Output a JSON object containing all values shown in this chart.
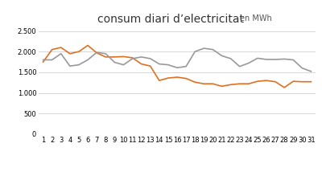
{
  "days": [
    1,
    2,
    3,
    4,
    5,
    6,
    7,
    8,
    9,
    10,
    11,
    12,
    13,
    14,
    15,
    16,
    17,
    18,
    19,
    20,
    21,
    22,
    23,
    24,
    25,
    26,
    27,
    28,
    29,
    30,
    31
  ],
  "series_2020": [
    1750,
    2050,
    2100,
    1950,
    2000,
    2150,
    1970,
    1870,
    1870,
    1880,
    1850,
    1700,
    1650,
    1300,
    1360,
    1380,
    1350,
    1260,
    1220,
    1220,
    1160,
    1200,
    1220,
    1220,
    1280,
    1300,
    1270,
    1130,
    1280,
    1270,
    1270
  ],
  "series_2019": [
    1800,
    1800,
    1950,
    1650,
    1680,
    1800,
    1980,
    1950,
    1740,
    1680,
    1830,
    1870,
    1830,
    1700,
    1680,
    1610,
    1640,
    2000,
    2080,
    2050,
    1900,
    1830,
    1640,
    1720,
    1840,
    1810,
    1810,
    1820,
    1800,
    1600,
    1520
  ],
  "color_2020": "#E07020",
  "color_2019": "#999999",
  "title_main": "consum diari d’electricitat",
  "title_sub": "en MWh",
  "ylim": [
    0,
    2500
  ],
  "yticks": [
    0,
    500,
    1000,
    1500,
    2000,
    2500
  ],
  "bg_color": "#ffffff",
  "plot_bg": "#ffffff",
  "grid_color": "#d8d8d8",
  "title_fontsize": 10,
  "subtitle_fontsize": 7,
  "tick_fontsize": 6,
  "legend_fontsize": 7
}
